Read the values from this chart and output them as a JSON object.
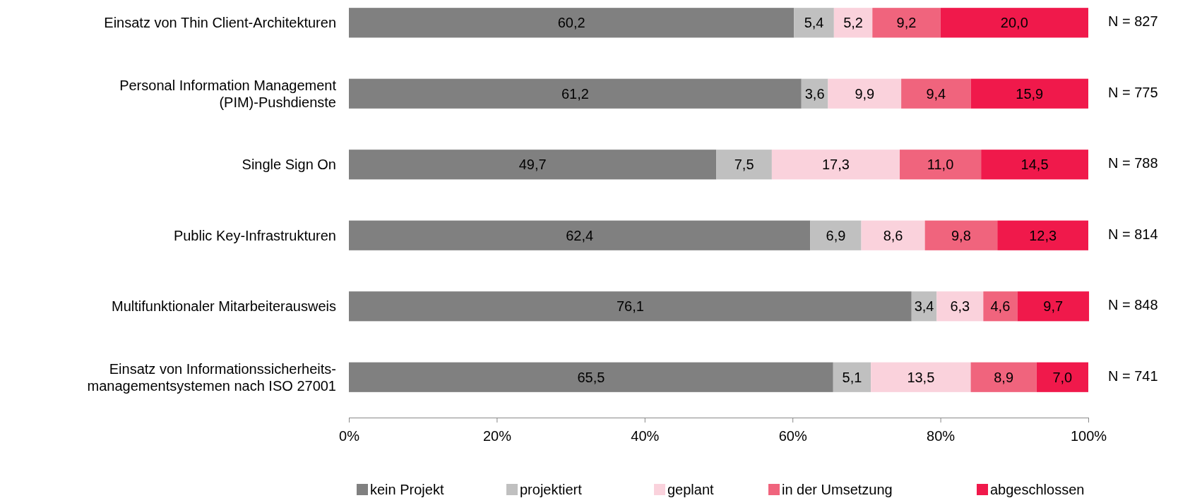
{
  "chart_data": {
    "type": "bar",
    "orientation": "horizontal",
    "stacked": true,
    "categories": [
      "Einsatz von Thin Client-Architekturen",
      "Personal Information Management\n(PIM)-Pushdienste",
      "Single Sign On",
      "Public Key-Infrastrukturen",
      "Multifunktionaler Mitarbeiterausweis",
      "Einsatz von Informationssicherheits-\nmanagementsystemen nach ISO 27001"
    ],
    "series": [
      {
        "name": "kein Projekt",
        "color": "#808080",
        "values": [
          60.2,
          61.2,
          49.7,
          62.4,
          76.1,
          65.5
        ],
        "value_labels": [
          "60,2",
          "61,2",
          "49,7",
          "62,4",
          "76,1",
          "65,5"
        ]
      },
      {
        "name": "projektiert",
        "color": "#c0c0c0",
        "values": [
          5.4,
          3.6,
          7.5,
          6.9,
          3.4,
          5.1
        ],
        "value_labels": [
          "5,4",
          "3,6",
          "7,5",
          "6,9",
          "3,4",
          "5,1"
        ]
      },
      {
        "name": "geplant",
        "color": "#fad2dc",
        "values": [
          5.2,
          9.9,
          17.3,
          8.6,
          6.3,
          13.5
        ],
        "value_labels": [
          "5,2",
          "9,9",
          "17,3",
          "8,6",
          "6,3",
          "13,5"
        ]
      },
      {
        "name": "in der Umsetzung",
        "color": "#f0647d",
        "values": [
          9.2,
          9.4,
          11.0,
          9.8,
          4.6,
          8.9
        ],
        "value_labels": [
          "9,2",
          "9,4",
          "11,0",
          "9,8",
          "4,6",
          "8,9"
        ]
      },
      {
        "name": "abgeschlossen",
        "color": "#f0194b",
        "values": [
          20.0,
          15.9,
          14.5,
          12.3,
          9.7,
          7.0
        ],
        "value_labels": [
          "20,0",
          "15,9",
          "14,5",
          "12,3",
          "9,7",
          "7,0"
        ]
      }
    ],
    "xlim": [
      0,
      100
    ],
    "xticks": [
      {
        "value": 0,
        "label": "0%"
      },
      {
        "value": 20,
        "label": "20%"
      },
      {
        "value": 40,
        "label": "40%"
      },
      {
        "value": 60,
        "label": "60%"
      },
      {
        "value": 80,
        "label": "80%"
      },
      {
        "value": 100,
        "label": "100%"
      }
    ],
    "annotations": [
      "N = 827",
      "N = 775",
      "N = 788",
      "N = 814",
      "N = 848",
      "N = 741"
    ],
    "legend": "bottom",
    "grid": false
  }
}
